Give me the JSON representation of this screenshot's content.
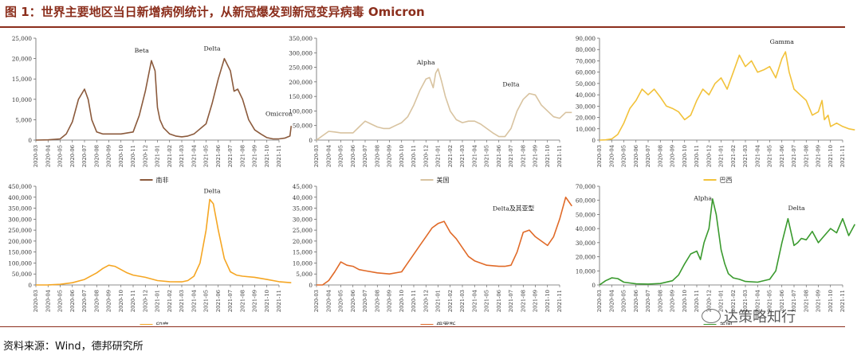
{
  "title": "图 1：世界主要地区当日新增病例统计，从新冠爆发到新冠变异病毒 Omicron",
  "source": "资料来源：Wind，德邦研究所",
  "watermark": "达策略知行",
  "chart_data": [
    {
      "type": "line",
      "title": "",
      "legend": "南非",
      "color": "#8b5a3c",
      "ylim": [
        0,
        25000
      ],
      "yticks": [
        "0",
        "5,000",
        "10,000",
        "15,000",
        "20,000",
        "25,000"
      ],
      "xticks": [
        "2020-03",
        "2020-04",
        "2020-05",
        "2020-06",
        "2020-07",
        "2020-08",
        "2020-09",
        "2020-10",
        "2020-11",
        "2020-12",
        "2021-01",
        "2021-02",
        "2021-03",
        "2021-04",
        "2021-05",
        "2021-06",
        "2021-07",
        "2021-08",
        "2021-09",
        "2021-10",
        "2021-11"
      ],
      "x": [
        0,
        1,
        2,
        2.5,
        3,
        3.5,
        4,
        4.3,
        4.6,
        5,
        5.5,
        6,
        7,
        8,
        8.5,
        9,
        9.5,
        9.8,
        10,
        10.2,
        10.5,
        11,
        11.5,
        12,
        12.5,
        13,
        14,
        14.5,
        15,
        15.5,
        16,
        16.3,
        16.6,
        17,
        17.5,
        18,
        18.5,
        19,
        19.5,
        20,
        20.5,
        20.9,
        21
      ],
      "values": [
        0,
        50,
        300,
        1500,
        4500,
        10000,
        12500,
        10000,
        5000,
        2000,
        1500,
        1500,
        1500,
        2000,
        6000,
        12000,
        19500,
        17000,
        8000,
        5000,
        3000,
        1500,
        1000,
        800,
        1000,
        1500,
        4000,
        9000,
        15000,
        20000,
        17000,
        12000,
        12500,
        10000,
        5000,
        2500,
        1500,
        600,
        300,
        300,
        500,
        1000,
        3500
      ],
      "annotations": [
        "Beta",
        "Delta",
        "Omicron"
      ]
    },
    {
      "type": "line",
      "title": "",
      "legend": "美国",
      "color": "#d8c3a0",
      "ylim": [
        0,
        350000
      ],
      "yticks": [
        "0",
        "50,000",
        "100,000",
        "150,000",
        "200,000",
        "250,000",
        "300,000",
        "350,000"
      ],
      "xticks": [
        "2020-03",
        "2020-04",
        "2020-05",
        "2020-06",
        "2020-07",
        "2020-08",
        "2020-09",
        "2020-10",
        "2020-11",
        "2020-12",
        "2021-01",
        "2021-02",
        "2021-03",
        "2021-04",
        "2021-05",
        "2021-06",
        "2021-07",
        "2021-08",
        "2021-09",
        "2021-10",
        "2021-11"
      ],
      "x": [
        0,
        0.5,
        1,
        1.5,
        2,
        3,
        3.5,
        4,
        4.5,
        5,
        5.5,
        6,
        6.5,
        7,
        7.5,
        8,
        8.5,
        9,
        9.3,
        9.6,
        9.8,
        10,
        10.3,
        10.6,
        11,
        11.5,
        12,
        12.5,
        13,
        13.5,
        14,
        14.5,
        15,
        15.5,
        16,
        16.5,
        17,
        17.5,
        18,
        18.5,
        19,
        19.5,
        20,
        20.5,
        21
      ],
      "values": [
        0,
        15000,
        30000,
        28000,
        25000,
        25000,
        45000,
        65000,
        55000,
        45000,
        40000,
        40000,
        50000,
        60000,
        80000,
        120000,
        170000,
        210000,
        215000,
        180000,
        230000,
        245000,
        200000,
        150000,
        100000,
        70000,
        60000,
        65000,
        65000,
        55000,
        40000,
        25000,
        12000,
        12000,
        40000,
        100000,
        140000,
        160000,
        155000,
        120000,
        100000,
        80000,
        75000,
        95000,
        95000
      ],
      "annotations": [
        "Alpha",
        "Delta"
      ]
    },
    {
      "type": "line",
      "title": "",
      "legend": "巴西",
      "color": "#f2c23a",
      "ylim": [
        0,
        90000
      ],
      "yticks": [
        "0",
        "10,000",
        "20,000",
        "30,000",
        "40,000",
        "50,000",
        "60,000",
        "70,000",
        "80,000",
        "90,000"
      ],
      "xticks": [
        "2020-03",
        "2020-04",
        "2020-05",
        "2020-06",
        "2020-07",
        "2020-08",
        "2020-09",
        "2020-10",
        "2020-11",
        "2020-12",
        "2021-01",
        "2021-02",
        "2021-03",
        "2021-04",
        "2021-05",
        "2021-06",
        "2021-07",
        "2021-08",
        "2021-09",
        "2021-10",
        "2021-11"
      ],
      "x": [
        0,
        0.5,
        1,
        1.5,
        2,
        2.5,
        3,
        3.5,
        4,
        4.5,
        5,
        5.5,
        6,
        6.5,
        7,
        7.5,
        8,
        8.5,
        9,
        9.5,
        10,
        10.5,
        11,
        11.5,
        12,
        12.5,
        13,
        13.5,
        14,
        14.5,
        15,
        15.3,
        15.6,
        16,
        16.5,
        17,
        17.5,
        18,
        18.3,
        18.5,
        18.8,
        19,
        19.5,
        20,
        20.5,
        21
      ],
      "values": [
        0,
        200,
        1000,
        5000,
        15000,
        28000,
        35000,
        45000,
        40000,
        45000,
        38000,
        30000,
        28000,
        25000,
        18000,
        22000,
        35000,
        45000,
        40000,
        50000,
        55000,
        45000,
        60000,
        75000,
        65000,
        70000,
        60000,
        62000,
        65000,
        55000,
        72000,
        78000,
        60000,
        45000,
        40000,
        35000,
        22000,
        25000,
        35000,
        18000,
        22000,
        12000,
        15000,
        12000,
        10000,
        9000
      ],
      "annotations": [
        "Gamma"
      ]
    },
    {
      "type": "line",
      "title": "",
      "legend": "印度",
      "color": "#f5a623",
      "ylim": [
        0,
        450000
      ],
      "yticks": [
        "0",
        "50,000",
        "100,000",
        "150,000",
        "200,000",
        "250,000",
        "300,000",
        "350,000",
        "400,000",
        "450,000"
      ],
      "xticks": [
        "2020-03",
        "2020-04",
        "2020-05",
        "2020-06",
        "2020-07",
        "2020-08",
        "2020-09",
        "2020-10",
        "2020-11",
        "2020-12",
        "2021-01",
        "2021-02",
        "2021-03",
        "2021-04",
        "2021-05",
        "2021-06",
        "2021-07",
        "2021-08",
        "2021-09",
        "2021-10",
        "2021-11"
      ],
      "x": [
        0,
        1,
        2,
        3,
        4,
        5,
        5.5,
        6,
        6.5,
        7,
        7.5,
        8,
        9,
        10,
        11,
        12,
        12.5,
        13,
        13.5,
        14,
        14.3,
        14.6,
        15,
        15.5,
        16,
        16.5,
        17,
        18,
        19,
        20,
        21
      ],
      "values": [
        0,
        500,
        3000,
        10000,
        25000,
        55000,
        75000,
        90000,
        85000,
        70000,
        55000,
        45000,
        35000,
        20000,
        15000,
        14000,
        20000,
        40000,
        100000,
        250000,
        390000,
        370000,
        250000,
        120000,
        60000,
        45000,
        40000,
        35000,
        25000,
        15000,
        10000
      ],
      "annotations": [
        "Delta"
      ]
    },
    {
      "type": "line",
      "title": "",
      "legend": "俄罗斯",
      "color": "#e06a28",
      "ylim": [
        0,
        45000
      ],
      "yticks": [
        "0",
        "5,000",
        "10,000",
        "15,000",
        "20,000",
        "25,000",
        "30,000",
        "35,000",
        "40,000",
        "45,000"
      ],
      "xticks": [
        "2020-03",
        "2020-04",
        "2020-05",
        "2020-06",
        "2020-07",
        "2020-08",
        "2020-09",
        "2020-10",
        "2020-11",
        "2020-12",
        "2021-01",
        "2021-02",
        "2021-03",
        "2021-04",
        "2021-05",
        "2021-06",
        "2021-07",
        "2021-08",
        "2021-09",
        "2021-10",
        "2021-11"
      ],
      "x": [
        0,
        0.5,
        1,
        1.5,
        2,
        2.5,
        3,
        3.5,
        4,
        5,
        6,
        7,
        7.5,
        8,
        8.5,
        9,
        9.5,
        10,
        10.5,
        11,
        11.5,
        12,
        12.5,
        13,
        14,
        15,
        15.5,
        16,
        16.5,
        17,
        17.5,
        18,
        18.5,
        19,
        19.5,
        20,
        20.5,
        21
      ],
      "values": [
        0,
        0,
        2000,
        6000,
        10500,
        9000,
        8500,
        7000,
        6500,
        5500,
        5000,
        6000,
        10000,
        14000,
        18000,
        22000,
        26000,
        28000,
        29000,
        24000,
        21000,
        17000,
        13000,
        11000,
        9000,
        8500,
        8500,
        9000,
        15000,
        24000,
        25000,
        22000,
        20000,
        18000,
        22000,
        30000,
        40000,
        36000
      ],
      "annotations": [
        "Delta及其亚型"
      ]
    },
    {
      "type": "line",
      "title": "",
      "legend": "英国",
      "color": "#3a9a2e",
      "ylim": [
        0,
        70000
      ],
      "yticks": [
        "0",
        "10,000",
        "20,000",
        "30,000",
        "40,000",
        "50,000",
        "60,000",
        "70,000"
      ],
      "xticks": [
        "2020-03",
        "2020-04",
        "2020-05",
        "2020-06",
        "2020-07",
        "2020-08",
        "2020-09",
        "2020-10",
        "2020-11",
        "2020-12",
        "2021-01",
        "2021-02",
        "2021-03",
        "2021-04",
        "2021-05",
        "2021-06",
        "2021-07",
        "2021-08",
        "2021-09",
        "2021-10",
        "2021-11"
      ],
      "x": [
        0,
        0.5,
        1,
        1.5,
        2,
        3,
        4,
        5,
        6,
        6.5,
        7,
        7.5,
        8,
        8.3,
        8.6,
        9,
        9.3,
        9.6,
        10,
        10.3,
        10.6,
        11,
        11.5,
        12,
        13,
        14,
        14.5,
        15,
        15.5,
        16,
        16.3,
        16.6,
        17,
        17.5,
        18,
        18.5,
        19,
        19.5,
        20,
        20.5,
        21
      ],
      "values": [
        0,
        3000,
        5000,
        4500,
        2000,
        800,
        600,
        1000,
        3000,
        7000,
        15000,
        22000,
        24000,
        18000,
        30000,
        40000,
        61000,
        50000,
        25000,
        15000,
        8000,
        5000,
        4000,
        2500,
        2000,
        4000,
        10000,
        30000,
        47000,
        28000,
        30000,
        33000,
        32000,
        38000,
        30000,
        35000,
        40000,
        37000,
        47000,
        35000,
        43000
      ],
      "annotations": [
        "Alpha",
        "Delta"
      ]
    }
  ]
}
